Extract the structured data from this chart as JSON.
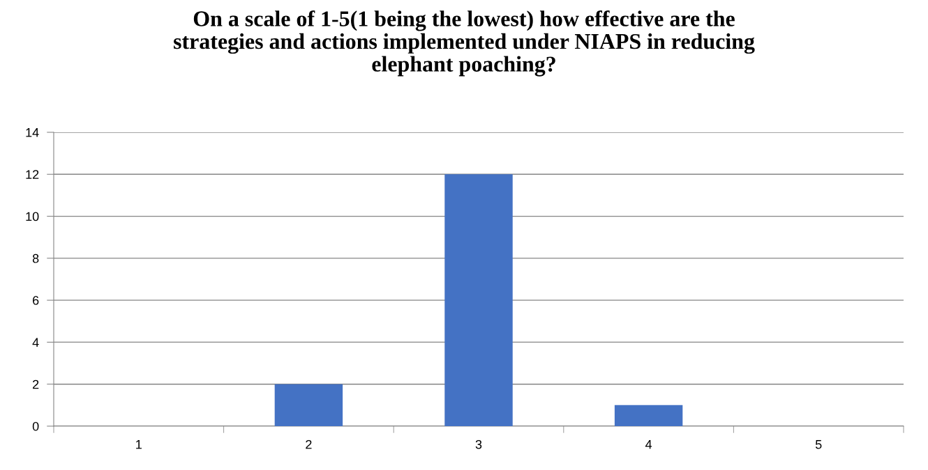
{
  "chart_data": {
    "type": "bar",
    "title": "On a scale of 1-5(1 being the lowest) how effective are the\nstrategies and actions implemented under NIAPS in reducing\nelephant poaching?",
    "categories": [
      "1",
      "2",
      "3",
      "4",
      "5"
    ],
    "values": [
      0,
      2,
      12,
      1,
      0
    ],
    "color": "#4472c4",
    "ylim": [
      0,
      14
    ],
    "yticks": [
      0,
      2,
      4,
      6,
      8,
      10,
      12,
      14
    ],
    "grid": "y"
  }
}
